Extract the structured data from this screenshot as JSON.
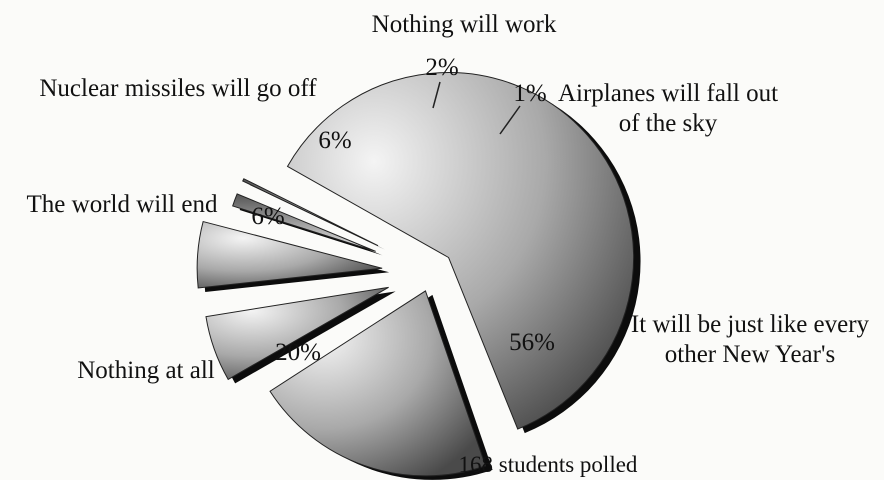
{
  "chart_data": {
    "type": "pie",
    "title": "",
    "note": "168 students polled",
    "slices": [
      {
        "label_lines": [
          "It will be just like every",
          "other New Year's"
        ],
        "value": 56,
        "value_label": "56%"
      },
      {
        "label_lines": [
          "Nothing at all"
        ],
        "value": 20,
        "value_label": "20%"
      },
      {
        "label_lines": [
          "The world will end"
        ],
        "value": 6,
        "value_label": "6%"
      },
      {
        "label_lines": [
          "Nuclear missiles will go off"
        ],
        "value": 6,
        "value_label": "6%"
      },
      {
        "label_lines": [
          "Nothing will work"
        ],
        "value": 2,
        "value_label": "2%"
      },
      {
        "label_lines": [
          "Airplanes will fall out",
          "of the sky"
        ],
        "value": 1,
        "value_label": "1%"
      }
    ]
  }
}
